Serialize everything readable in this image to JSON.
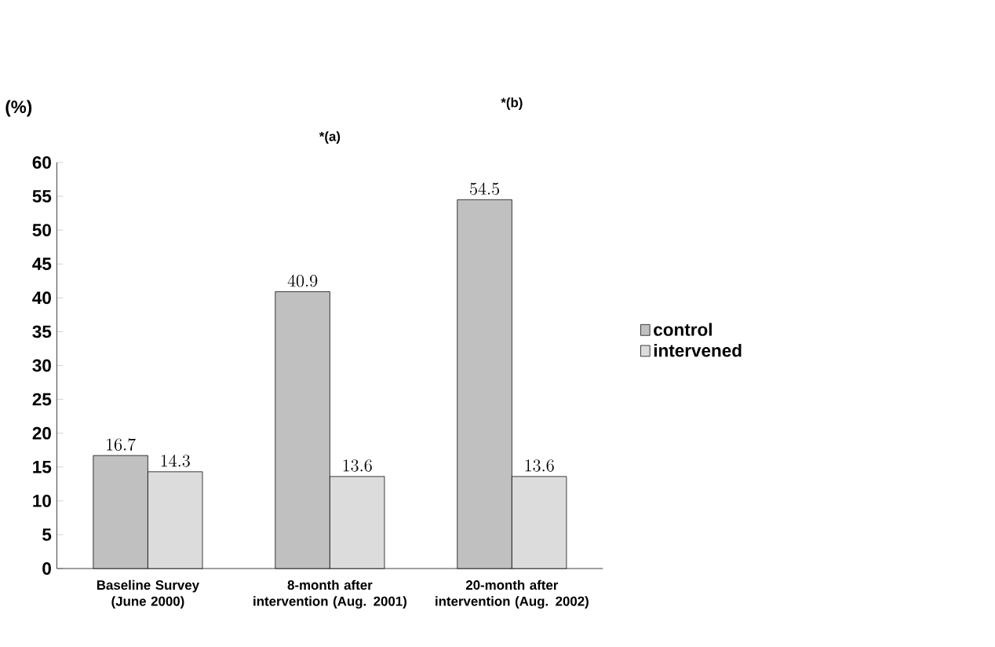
{
  "chart_data": {
    "type": "bar",
    "ylabel": "(%)",
    "categories": [
      "Baseline Survey (June 2000)",
      "8-month after intervention (Aug. 2001)",
      "20-month after intervention (Aug. 2002)"
    ],
    "series": [
      {
        "name": "control",
        "color": "#c0c0c0",
        "values": [
          16.7,
          40.9,
          54.5
        ]
      },
      {
        "name": "intervened",
        "color": "#dcdcdc",
        "values": [
          14.3,
          13.6,
          13.6
        ]
      }
    ],
    "ylim": [
      0,
      60
    ],
    "yticks": [
      0,
      5,
      10,
      15,
      20,
      25,
      30,
      35,
      40,
      45,
      50,
      55,
      60
    ],
    "data_labels": true,
    "legend": "right",
    "grid": false,
    "annotations": [
      "*(a)",
      "*(b)"
    ]
  }
}
